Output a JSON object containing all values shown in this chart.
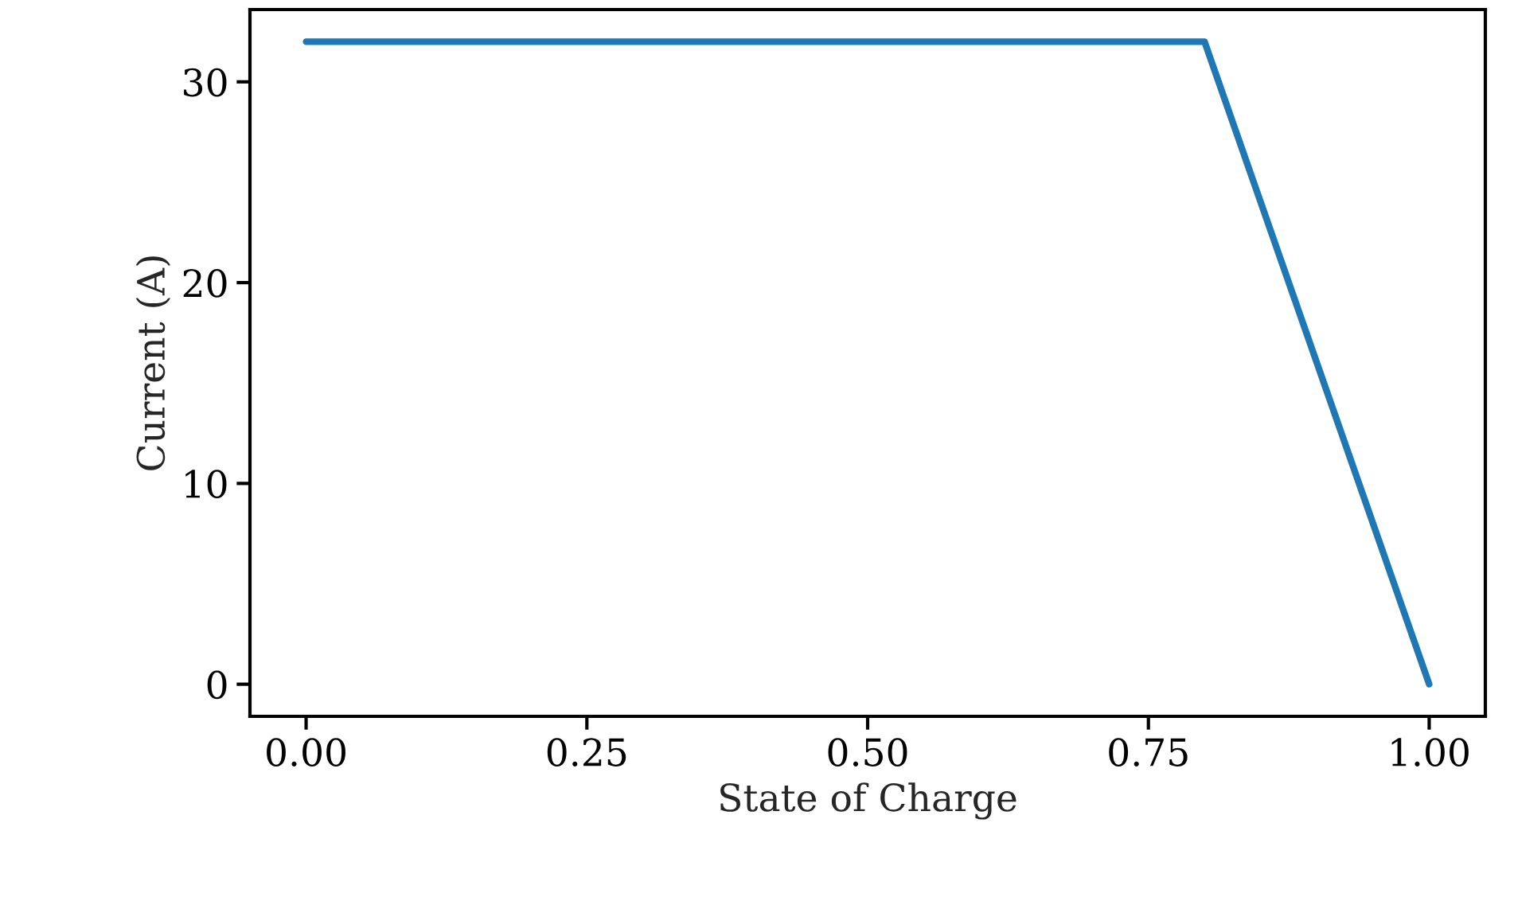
{
  "chart_data": {
    "type": "line",
    "xlabel": "State of Charge",
    "ylabel": "Current (A)",
    "x": [
      0,
      0.8,
      1.0
    ],
    "series": [
      {
        "color": "#1f77b4",
        "values": [
          32,
          32,
          0
        ]
      }
    ],
    "xlim": [
      -0.05,
      1.05
    ],
    "ylim": [
      -1.6,
      33.6
    ],
    "xticks": [
      {
        "value": 0,
        "label": "0.00"
      },
      {
        "value": 0.25,
        "label": "0.25"
      },
      {
        "value": 0.5,
        "label": "0.50"
      },
      {
        "value": 0.75,
        "label": "0.75"
      },
      {
        "value": 1.0,
        "label": "1.00"
      }
    ],
    "yticks": [
      0,
      10,
      20,
      30
    ],
    "grid": false,
    "legend": false,
    "marker": "none",
    "line_style": "solid"
  }
}
